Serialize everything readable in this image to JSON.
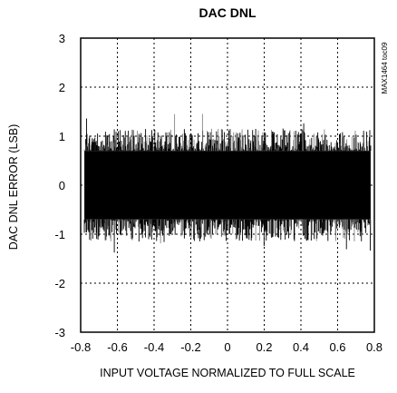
{
  "chart_data": {
    "type": "line",
    "title": "DAC DNL",
    "xlabel": "INPUT VOLTAGE NORMALIZED TO FULL SCALE",
    "ylabel": "DAC DNL ERROR (LSB)",
    "annotation": "MAX1464 toc09",
    "xlim": [
      -0.8,
      0.8
    ],
    "ylim": [
      -3,
      3
    ],
    "x_ticks": [
      -0.8,
      -0.6,
      -0.4,
      -0.2,
      0,
      0.2,
      0.4,
      0.6,
      0.8
    ],
    "y_ticks": [
      -3,
      -2,
      -1,
      0,
      1,
      2,
      3
    ],
    "x_tick_labels": [
      "-0.8",
      "-0.6",
      "-0.4",
      "-0.2",
      "0",
      "0.2",
      "0.4",
      "0.6",
      "0.8"
    ],
    "y_tick_labels": [
      "-3",
      "-2",
      "-1",
      "0",
      "1",
      "2",
      "3"
    ],
    "grid": true,
    "series": [
      {
        "x_range": [
          -0.78,
          0.78
        ],
        "band_upper": 0.7,
        "band_lower": -0.7,
        "peak_max": 1.5,
        "peak_min": -1.4,
        "color": "#000000"
      }
    ]
  }
}
